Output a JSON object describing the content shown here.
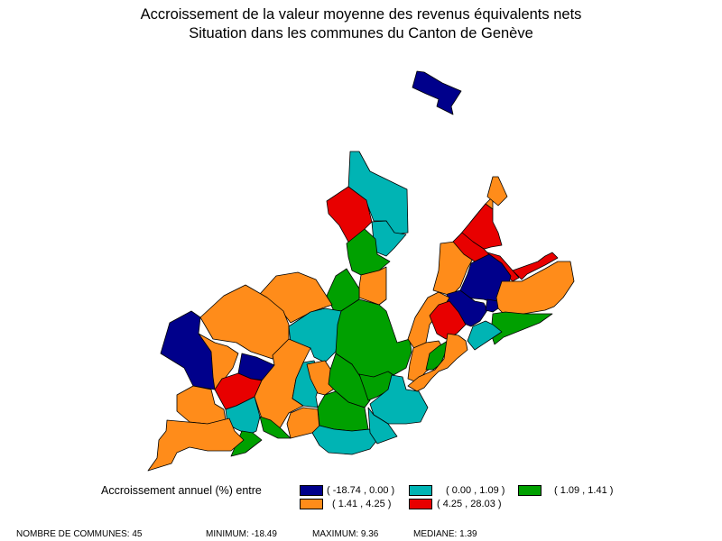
{
  "title": {
    "line1": "Accroissement de la valeur moyenne des revenus équivalents nets",
    "line2": "Situation dans les communes du Canton de Genève"
  },
  "legend": {
    "label": "Accroissement annuel (%) entre",
    "classes": [
      {
        "range": "( -18.74 , 0.00 )",
        "color": "#00008B"
      },
      {
        "range": "( 0.00 , 1.09 )",
        "color": "#00B4B4"
      },
      {
        "range": "( 1.09 , 1.41 )",
        "color": "#00A000"
      },
      {
        "range": "( 1.41 , 4.25 )",
        "color": "#FF8C1A"
      },
      {
        "range": "( 4.25 , 28.03 )",
        "color": "#E80000"
      }
    ]
  },
  "footer": {
    "count": "NOMBRE DE COMMUNES: 45",
    "min": "MINIMUM: -18.49",
    "max": "MAXIMUM: 9.36",
    "median": "MEDIANE: 1.39"
  },
  "map": {
    "communes_count": 45
  }
}
